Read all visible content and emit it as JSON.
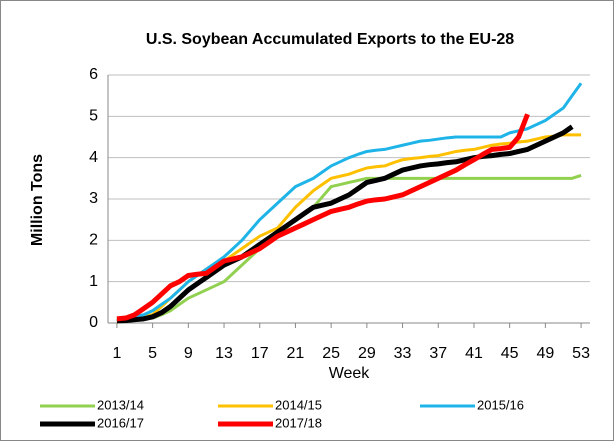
{
  "chart_data": {
    "type": "line",
    "title": "U.S. Soybean Accumulated Exports to the EU-28",
    "x_label": "Week",
    "y_label": "Million Tons",
    "x": [
      1,
      2,
      3,
      4,
      5,
      6,
      7,
      8,
      9,
      10,
      11,
      12,
      13,
      14,
      15,
      16,
      17,
      18,
      19,
      20,
      21,
      22,
      23,
      24,
      25,
      26,
      27,
      28,
      29,
      30,
      31,
      32,
      33,
      34,
      35,
      36,
      37,
      38,
      39,
      40,
      41,
      42,
      43,
      44,
      45,
      46,
      47,
      48,
      49,
      50,
      51,
      52,
      53
    ],
    "xlim": [
      0,
      54
    ],
    "xticks": [
      1,
      5,
      9,
      13,
      17,
      21,
      25,
      29,
      33,
      37,
      41,
      45,
      49,
      53
    ],
    "ylim": [
      0,
      6
    ],
    "yticks": [
      0,
      1,
      2,
      3,
      4,
      5,
      6
    ],
    "grid": true,
    "legend": "bottom",
    "series": [
      {
        "name": "2013/14",
        "color": "#92d050",
        "values": [
          0.02,
          0.05,
          0.08,
          0.1,
          0.12,
          0.2,
          0.3,
          0.45,
          0.6,
          0.7,
          0.8,
          0.9,
          1.0,
          1.2,
          1.4,
          1.6,
          1.8,
          1.95,
          2.1,
          2.3,
          2.5,
          2.65,
          2.8,
          3.05,
          3.3,
          3.35,
          3.4,
          3.45,
          3.5,
          3.5,
          3.5,
          3.5,
          3.5,
          3.5,
          3.5,
          3.5,
          3.5,
          3.5,
          3.5,
          3.5,
          3.5,
          3.5,
          3.5,
          3.5,
          3.5,
          3.5,
          3.5,
          3.5,
          3.5,
          3.5,
          3.5,
          3.5,
          3.57
        ]
      },
      {
        "name": "2014/15",
        "color": "#ffc000",
        "values": [
          0.05,
          0.08,
          0.12,
          0.16,
          0.2,
          0.4,
          0.6,
          0.8,
          1.0,
          1.15,
          1.3,
          1.4,
          1.5,
          1.65,
          1.8,
          1.95,
          2.1,
          2.2,
          2.3,
          2.55,
          2.8,
          3.0,
          3.2,
          3.35,
          3.5,
          3.55,
          3.6,
          3.68,
          3.75,
          3.78,
          3.8,
          3.88,
          3.95,
          3.98,
          4.0,
          4.03,
          4.05,
          4.1,
          4.15,
          4.18,
          4.2,
          4.25,
          4.3,
          4.33,
          4.35,
          4.38,
          4.4,
          4.45,
          4.5,
          4.52,
          4.55,
          4.55,
          4.55
        ]
      },
      {
        "name": "2015/16",
        "color": "#1fb4e8",
        "values": [
          0.05,
          0.1,
          0.15,
          0.2,
          0.3,
          0.45,
          0.6,
          0.8,
          1.0,
          1.15,
          1.3,
          1.45,
          1.6,
          1.8,
          2.0,
          2.25,
          2.5,
          2.7,
          2.9,
          3.1,
          3.3,
          3.4,
          3.5,
          3.65,
          3.8,
          3.9,
          4.0,
          4.08,
          4.15,
          4.18,
          4.2,
          4.25,
          4.3,
          4.35,
          4.4,
          4.42,
          4.45,
          4.48,
          4.5,
          4.5,
          4.5,
          4.5,
          4.5,
          4.5,
          4.6,
          4.65,
          4.7,
          4.8,
          4.9,
          5.05,
          5.2,
          5.5,
          5.8
        ]
      },
      {
        "name": "2016/17",
        "color": "#000000",
        "values": [
          0.05,
          0.06,
          0.08,
          0.1,
          0.15,
          0.25,
          0.4,
          0.6,
          0.8,
          0.95,
          1.1,
          1.25,
          1.4,
          1.5,
          1.6,
          1.75,
          1.9,
          2.05,
          2.2,
          2.35,
          2.5,
          2.65,
          2.8,
          2.85,
          2.9,
          3.0,
          3.1,
          3.25,
          3.4,
          3.45,
          3.5,
          3.6,
          3.7,
          3.75,
          3.8,
          3.83,
          3.85,
          3.88,
          3.9,
          3.95,
          4.0,
          4.03,
          4.05,
          4.08,
          4.1,
          4.15,
          4.2,
          4.3,
          4.4,
          4.5,
          4.6,
          4.75,
          null
        ]
      },
      {
        "name": "2017/18",
        "color": "#ff0000",
        "values": [
          0.1,
          0.12,
          0.2,
          0.35,
          0.5,
          0.7,
          0.9,
          1.0,
          1.15,
          1.18,
          1.2,
          1.35,
          1.5,
          1.55,
          1.6,
          1.7,
          1.8,
          1.95,
          2.1,
          2.2,
          2.3,
          2.4,
          2.5,
          2.6,
          2.7,
          2.75,
          2.8,
          2.88,
          2.95,
          2.98,
          3.0,
          3.05,
          3.1,
          3.2,
          3.3,
          3.4,
          3.5,
          3.6,
          3.7,
          3.83,
          3.95,
          4.08,
          4.2,
          4.22,
          4.25,
          4.5,
          5.05,
          null,
          null,
          null,
          null,
          null,
          null
        ]
      }
    ]
  }
}
